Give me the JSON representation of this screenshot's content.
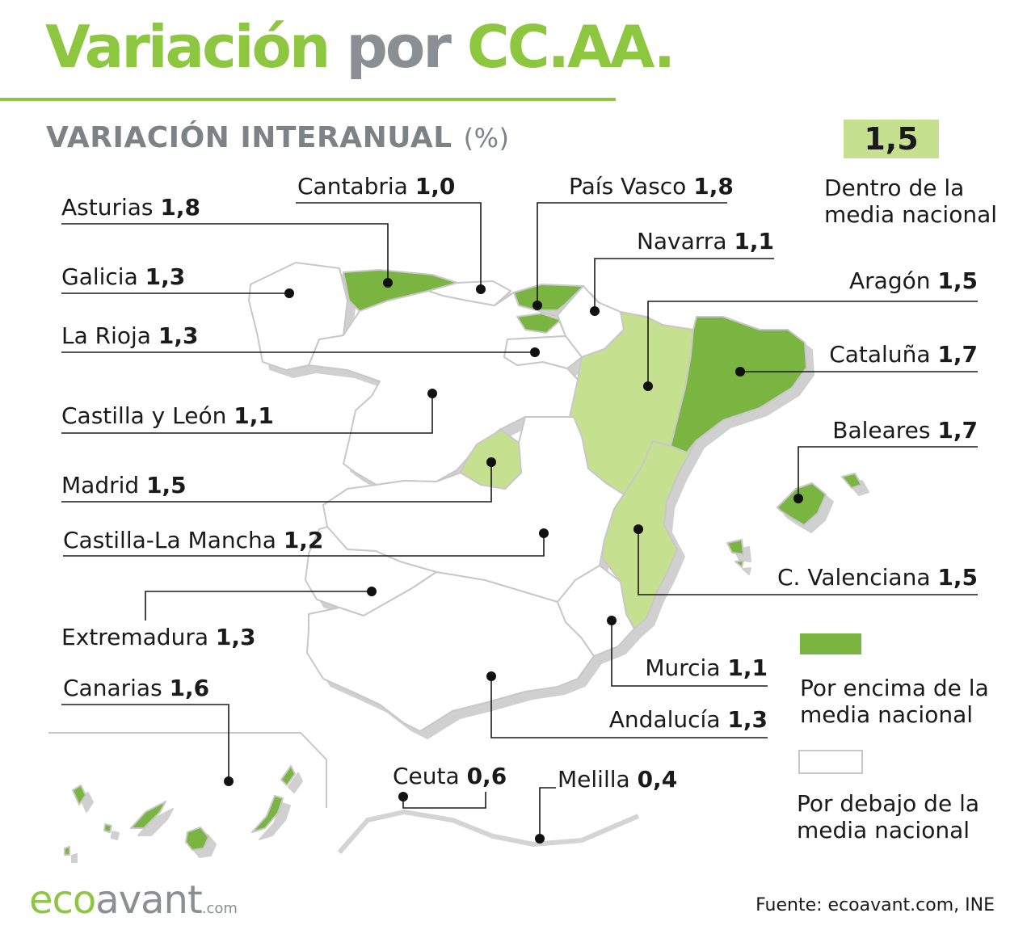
{
  "title": {
    "part1": "Variación",
    "part2": "por",
    "part3": "CC.AA."
  },
  "subtitle": {
    "text": "VARIACIÓN INTERANUAL",
    "unit": "(%)"
  },
  "national": {
    "value": "1,5",
    "caption_line1": "Dentro de la",
    "caption_line2": "media nacional"
  },
  "regions": [
    {
      "key": "cantabria",
      "name": "Cantabria",
      "value": "1,0",
      "category": "below"
    },
    {
      "key": "pais_vasco",
      "name": "País Vasco",
      "value": "1,8",
      "category": "above"
    },
    {
      "key": "asturias",
      "name": "Asturias",
      "value": "1,8",
      "category": "above"
    },
    {
      "key": "navarra",
      "name": "Navarra",
      "value": "1,1",
      "category": "below"
    },
    {
      "key": "galicia",
      "name": "Galicia",
      "value": "1,3",
      "category": "below"
    },
    {
      "key": "aragon",
      "name": "Aragón",
      "value": "1,5",
      "category": "within"
    },
    {
      "key": "la_rioja",
      "name": "La Rioja",
      "value": "1,3",
      "category": "below"
    },
    {
      "key": "cataluna",
      "name": "Cataluña",
      "value": "1,7",
      "category": "above"
    },
    {
      "key": "castilla_leon",
      "name": "Castilla y León",
      "value": "1,1",
      "category": "below"
    },
    {
      "key": "baleares",
      "name": "Baleares",
      "value": "1,7",
      "category": "above"
    },
    {
      "key": "madrid",
      "name": "Madrid",
      "value": "1,5",
      "category": "within"
    },
    {
      "key": "castilla_la_mancha",
      "name": "Castilla-La Mancha",
      "value": "1,2",
      "category": "below"
    },
    {
      "key": "c_valenciana",
      "name": "C. Valenciana",
      "value": "1,5",
      "category": "within"
    },
    {
      "key": "extremadura",
      "name": "Extremadura",
      "value": "1,3",
      "category": "below"
    },
    {
      "key": "murcia",
      "name": "Murcia",
      "value": "1,1",
      "category": "below"
    },
    {
      "key": "canarias",
      "name": "Canarias",
      "value": "1,6",
      "category": "above"
    },
    {
      "key": "andalucia",
      "name": "Andalucía",
      "value": "1,3",
      "category": "below"
    },
    {
      "key": "ceuta",
      "name": "Ceuta",
      "value": "0,6",
      "category": "below"
    },
    {
      "key": "melilla",
      "name": "Melilla",
      "value": "0,4",
      "category": "below"
    }
  ],
  "legend": {
    "above": {
      "line1": "Por encima de la",
      "line2": "media nacional"
    },
    "below": {
      "line1": "Por debajo de la",
      "line2": "media nacional"
    }
  },
  "colors": {
    "above": "#79b53f",
    "within": "#c5e08f",
    "below": "#ffffff",
    "accent": "#8dc63f",
    "grey_text": "#8a8f94"
  },
  "brand": {
    "eco": "eco",
    "avant": "avant",
    "com": ".com"
  },
  "source": "Fuente: ecoavant.com, INE"
}
